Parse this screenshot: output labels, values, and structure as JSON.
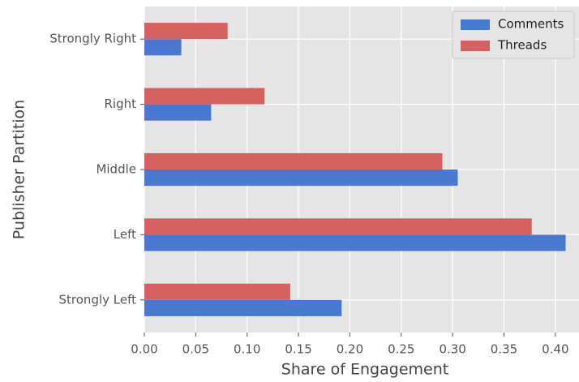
{
  "chart_data": {
    "type": "barh",
    "xlabel": "Share of Engagement",
    "ylabel": "Publisher Partition",
    "categories": [
      "Strongly Left",
      "Left",
      "Middle",
      "Right",
      "Strongly Right"
    ],
    "series": [
      {
        "name": "Comments",
        "color": "#4878cf",
        "values": [
          0.192,
          0.41,
          0.305,
          0.065,
          0.036
        ]
      },
      {
        "name": "Threads",
        "color": "#d65f5f",
        "values": [
          0.142,
          0.377,
          0.29,
          0.117,
          0.081
        ]
      }
    ],
    "xlim": [
      0,
      0.423
    ],
    "xticks": [
      {
        "value": 0,
        "label": "0.00"
      },
      0.05,
      {
        "value": 0.1,
        "label": "0.10"
      },
      0.15,
      {
        "value": 0.2,
        "label": "0.20"
      },
      0.25,
      {
        "value": 0.3,
        "label": "0.30"
      },
      0.35,
      {
        "value": 0.4,
        "label": "0.40"
      }
    ],
    "grid": true,
    "legend": "upper right"
  }
}
